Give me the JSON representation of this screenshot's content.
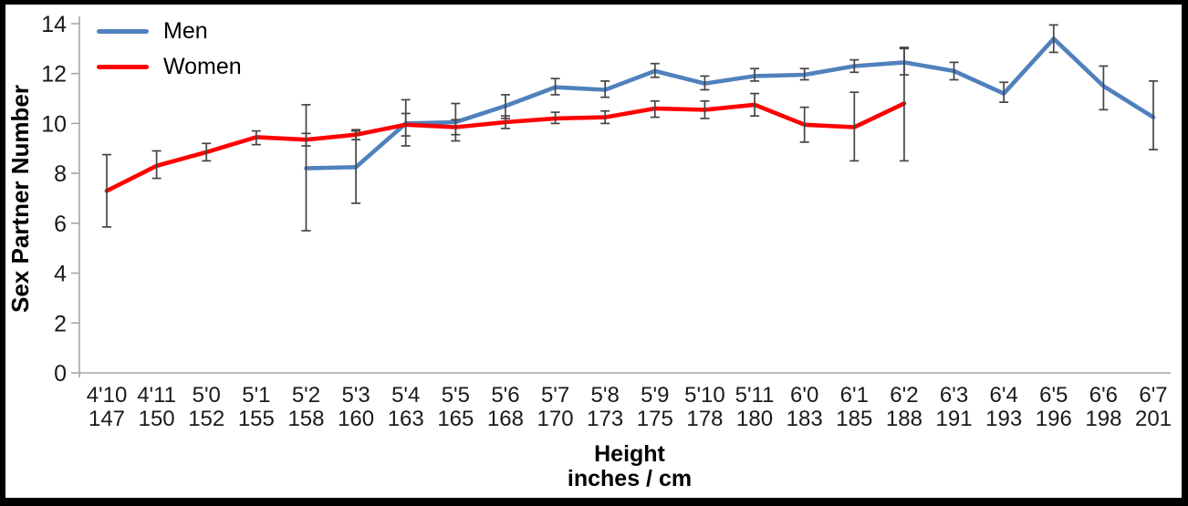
{
  "legend": {
    "items": [
      {
        "label": "Men",
        "color": "#4F81BD"
      },
      {
        "label": "Women",
        "color": "#FE0000"
      }
    ]
  },
  "chart_data": {
    "type": "line",
    "ylabel": "Sex Partner Number",
    "xlabel_line1": "Height",
    "xlabel_line2": "inches / cm",
    "ylim": [
      0,
      14
    ],
    "yticks": [
      0,
      2,
      4,
      6,
      8,
      10,
      12,
      14
    ],
    "grid": false,
    "legend_position": "top-left",
    "axis_color": "#A6A6A6",
    "error_bar_color": "#454545",
    "categories_height": [
      "4'10",
      "4'11",
      "5'0",
      "5'1",
      "5'2",
      "5'3",
      "5'4",
      "5'5",
      "5'6",
      "5'7",
      "5'8",
      "5'9",
      "5'10",
      "5'11",
      "6'0",
      "6'1",
      "6'2",
      "6'3",
      "6'4",
      "6'5",
      "6'6",
      "6'7"
    ],
    "categories_cm": [
      "147",
      "150",
      "152",
      "155",
      "158",
      "160",
      "163",
      "165",
      "168",
      "170",
      "173",
      "175",
      "178",
      "180",
      "183",
      "185",
      "188",
      "191",
      "193",
      "196",
      "198",
      "201"
    ],
    "series": [
      {
        "name": "Men",
        "color": "#4F81BD",
        "values": [
          null,
          null,
          null,
          null,
          8.2,
          8.25,
          10.0,
          10.05,
          10.7,
          11.45,
          11.35,
          12.1,
          11.6,
          11.9,
          11.95,
          12.3,
          12.45,
          12.1,
          11.2,
          13.4,
          11.5,
          10.25
        ],
        "err_low": [
          null,
          null,
          null,
          null,
          5.7,
          6.8,
          9.1,
          9.3,
          10.2,
          11.15,
          11.05,
          11.85,
          11.35,
          11.7,
          11.75,
          12.05,
          11.95,
          11.75,
          10.85,
          12.85,
          10.55,
          8.95
        ],
        "err_high": [
          null,
          null,
          null,
          null,
          10.75,
          9.7,
          10.95,
          10.8,
          11.15,
          11.8,
          11.7,
          12.4,
          11.9,
          12.2,
          12.2,
          12.55,
          13.0,
          12.45,
          11.65,
          13.95,
          12.3,
          11.7
        ]
      },
      {
        "name": "Women",
        "color": "#FE0000",
        "values": [
          7.3,
          8.3,
          8.85,
          9.45,
          9.35,
          9.55,
          9.95,
          9.85,
          10.05,
          10.2,
          10.25,
          10.6,
          10.55,
          10.75,
          9.95,
          9.85,
          10.8,
          null,
          null,
          null,
          null,
          null
        ],
        "err_low": [
          5.85,
          7.8,
          8.5,
          9.15,
          9.1,
          9.35,
          9.5,
          9.55,
          9.8,
          10.0,
          10.0,
          10.25,
          10.2,
          10.3,
          9.25,
          8.5,
          8.5,
          null,
          null,
          null,
          null,
          null
        ],
        "err_high": [
          8.75,
          8.9,
          9.2,
          9.7,
          9.6,
          9.75,
          10.4,
          10.15,
          10.3,
          10.45,
          10.5,
          10.9,
          10.9,
          11.2,
          10.65,
          11.25,
          13.05,
          null,
          null,
          null,
          null,
          null
        ]
      }
    ]
  }
}
